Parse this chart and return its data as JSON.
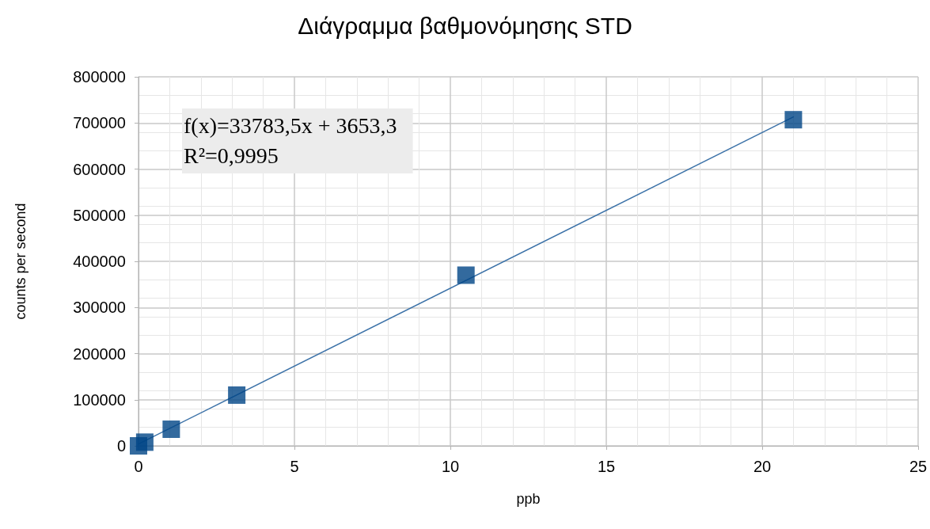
{
  "chart_data": {
    "type": "scatter",
    "title": "Διάγραμμα βαθμονόμησης STD",
    "xlabel": "ppb",
    "ylabel": "counts per second",
    "series": [
      {
        "color": "#004586",
        "marker": "square",
        "x": [
          0,
          0.2,
          1.05,
          3.15,
          10.5,
          21
        ],
        "values": [
          0,
          8000,
          36000,
          110000,
          370000,
          707000
        ]
      },
      {
        "type": "line",
        "color": "#3c72a8",
        "marker": "none",
        "x": [
          0,
          21
        ],
        "values": [
          4000,
          713000
        ]
      }
    ],
    "annotations": [
      "f(x)=33783,5x + 3653,3\nR²=0,9995"
    ],
    "xlim": [
      0,
      25
    ],
    "xticks": [
      0,
      5,
      10,
      15,
      20,
      25
    ],
    "ylim": [
      0,
      800000
    ],
    "yticks": [
      0,
      100000,
      200000,
      300000,
      400000,
      500000,
      600000,
      700000,
      800000
    ],
    "grid": true
  }
}
